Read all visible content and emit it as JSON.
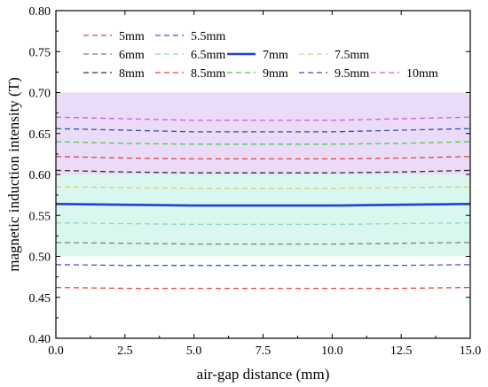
{
  "chart_data": {
    "type": "line",
    "xlabel": "air-gap distance (mm)",
    "ylabel": "magnetic induction intensity (T)",
    "xlim": [
      0.0,
      15.0
    ],
    "ylim": [
      0.4,
      0.8
    ],
    "xticks": [
      "0.0",
      "2.5",
      "5.0",
      "7.5",
      "10.0",
      "12.5",
      "15.0"
    ],
    "yticks": [
      "0.40",
      "0.45",
      "0.50",
      "0.55",
      "0.60",
      "0.65",
      "0.70",
      "0.75",
      "0.80"
    ],
    "grid": false,
    "legend_position": "top-left",
    "bands": [
      {
        "y0": 0.5,
        "y1": 0.6,
        "color": "#d9f7ee"
      },
      {
        "y0": 0.6,
        "y1": 0.7,
        "color": "#eadcf9"
      }
    ],
    "x": [
      0,
      2.5,
      5,
      7.5,
      10,
      12.5,
      15
    ],
    "series": [
      {
        "name": "5mm",
        "color": "#e8423c",
        "style": "dashed",
        "values": [
          0.462,
          0.461,
          0.461,
          0.461,
          0.461,
          0.461,
          0.462
        ]
      },
      {
        "name": "5.5mm",
        "color": "#3a55e6",
        "style": "dashed",
        "values": [
          0.49,
          0.489,
          0.489,
          0.489,
          0.489,
          0.489,
          0.49
        ]
      },
      {
        "name": "6mm",
        "color": "#808080",
        "style": "dashed",
        "values": [
          0.517,
          0.516,
          0.515,
          0.515,
          0.515,
          0.516,
          0.517
        ]
      },
      {
        "name": "6.5mm",
        "color": "#8fd5c4",
        "style": "dashed",
        "values": [
          0.541,
          0.54,
          0.539,
          0.539,
          0.539,
          0.54,
          0.541
        ]
      },
      {
        "name": "7mm",
        "color": "#1f3fd6",
        "style": "solid",
        "values": [
          0.564,
          0.563,
          0.562,
          0.562,
          0.562,
          0.563,
          0.564
        ]
      },
      {
        "name": "7.5mm",
        "color": "#e8c77a",
        "style": "dashed",
        "values": [
          0.585,
          0.584,
          0.583,
          0.583,
          0.583,
          0.584,
          0.585
        ]
      },
      {
        "name": "8mm",
        "color": "#333333",
        "style": "dashed",
        "values": [
          0.605,
          0.603,
          0.602,
          0.602,
          0.602,
          0.603,
          0.605
        ]
      },
      {
        "name": "8.5mm",
        "color": "#e8423c",
        "style": "dashed",
        "values": [
          0.622,
          0.62,
          0.619,
          0.619,
          0.619,
          0.62,
          0.622
        ]
      },
      {
        "name": "9mm",
        "color": "#4cc94a",
        "style": "dashed",
        "values": [
          0.64,
          0.638,
          0.637,
          0.637,
          0.637,
          0.638,
          0.64
        ]
      },
      {
        "name": "9.5mm",
        "color": "#3a4fa8",
        "style": "dashed",
        "values": [
          0.656,
          0.654,
          0.652,
          0.652,
          0.652,
          0.654,
          0.656
        ]
      },
      {
        "name": "10mm",
        "color": "#e84fd6",
        "style": "dashed",
        "values": [
          0.67,
          0.668,
          0.666,
          0.666,
          0.666,
          0.668,
          0.67
        ]
      }
    ]
  }
}
